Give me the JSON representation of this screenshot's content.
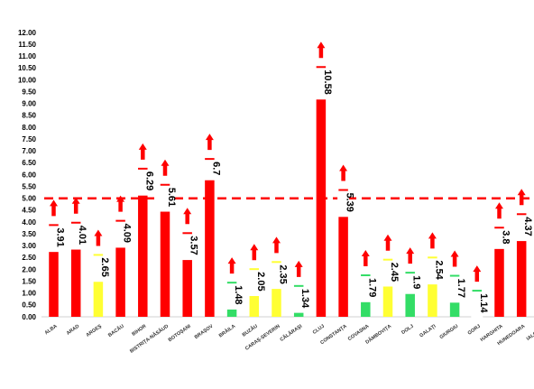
{
  "chart_data": {
    "type": "bar",
    "categories": [
      "ALBA",
      "ARAD",
      "ARGEȘ",
      "BACĂU",
      "BIHOR",
      "BISTRIȚA-NĂSĂUD",
      "BOTOȘANI",
      "BRAȘOV",
      "BRĂILA",
      "BUZĂU",
      "CARAȘ-SEVERIN",
      "CĂLĂRAȘI",
      "CLUJ",
      "CONSTANȚA",
      "COVASNA",
      "DÂMBOVIȚA",
      "DOLJ",
      "GALAȚI",
      "GIURGIU",
      "GORJ",
      "HARGHITA",
      "HUNEDOARA",
      "IALOMIȚA"
    ],
    "values": [
      3.91,
      4.01,
      2.65,
      4.09,
      6.29,
      5.61,
      3.57,
      6.7,
      1.48,
      2.05,
      2.35,
      1.34,
      10.58,
      5.39,
      1.79,
      2.45,
      1.9,
      2.54,
      1.77,
      1.14,
      3.8,
      4.37,
      null
    ],
    "labels": [
      "3.91",
      "4.01",
      "2.65",
      "4.09",
      "6.29",
      "5.61",
      "3.57",
      "6.7",
      "1.48",
      "2.05",
      "2.35",
      "1.34",
      "10.58",
      "5.39",
      "1.79",
      "2.45",
      "1.9",
      "2.54",
      "1.77",
      "1.14",
      "3.8",
      "4.37",
      ""
    ],
    "colors": [
      "#ff0000",
      "#ff0000",
      "#ffff33",
      "#ff0000",
      "#ff0000",
      "#ff0000",
      "#ff0000",
      "#ff0000",
      "#33dd66",
      "#ffff33",
      "#ffff33",
      "#33dd66",
      "#ff0000",
      "#ff0000",
      "#33dd66",
      "#ffff33",
      "#33dd66",
      "#ffff33",
      "#33dd66",
      "#33dd66",
      "#ff0000",
      "#ff0000",
      "#ff0000"
    ],
    "trend": [
      "up",
      "up",
      "up",
      "up",
      "up",
      "up",
      "up",
      "up",
      "up",
      "up",
      "up",
      "up",
      "up",
      "up",
      "up",
      "up",
      "up",
      "up",
      "up",
      "up",
      "up",
      "up",
      ""
    ],
    "arrow_color": "#ff0000",
    "threshold": 5.0,
    "threshold_color": "#ff0000",
    "ylim": [
      0,
      12.0
    ],
    "ytick_labels": [
      "0.00",
      "0.50",
      "1.00",
      "1.50",
      "2.00",
      "2.50",
      "3.00",
      "3.50",
      "4.00",
      "4.50",
      "5.00",
      "5.50",
      "6.00",
      "6.50",
      "7.00",
      "7.50",
      "8.00",
      "8.50",
      "9.00",
      "9.50",
      "10.00",
      "10.50",
      "11.00",
      "11.50",
      "12.00"
    ],
    "grid": false,
    "title": "",
    "xlabel": "",
    "ylabel": ""
  }
}
